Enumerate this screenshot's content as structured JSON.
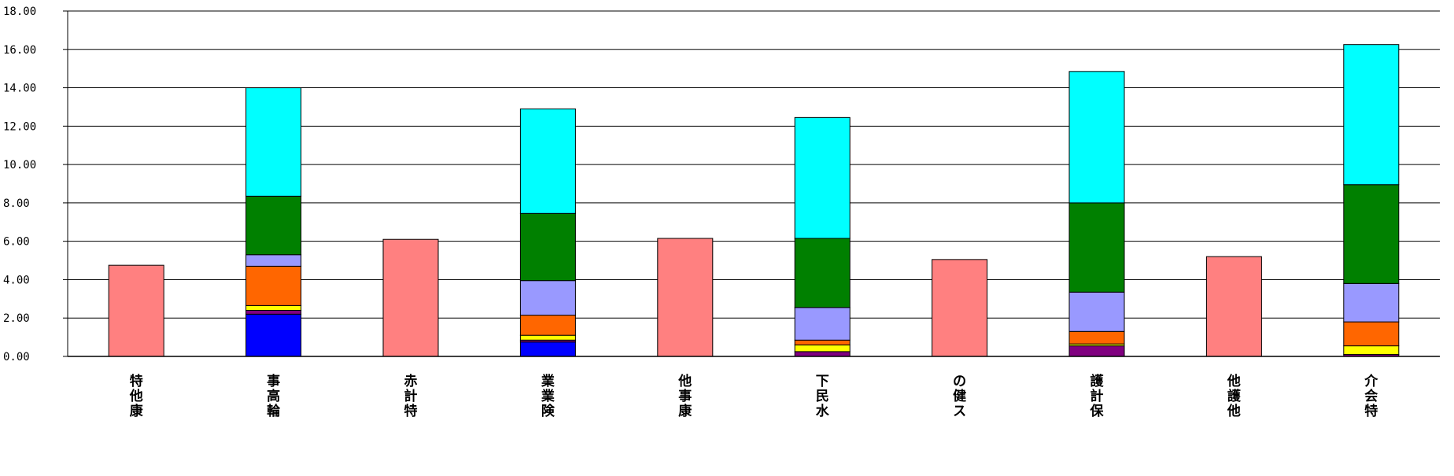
{
  "chart_data": {
    "type": "bar",
    "stacked": true,
    "categories": [
      "特他康",
      "事高輪",
      "赤計特",
      "業業険",
      "他事康",
      "下民水",
      "の健ス",
      "護計保",
      "他護他",
      "介会特"
    ],
    "ylim": [
      0,
      18
    ],
    "yticks": [
      "0.00",
      "2.00",
      "4.00",
      "6.00",
      "8.00",
      "10.00",
      "12.00",
      "14.00",
      "16.00",
      "18.00"
    ],
    "grid": true,
    "legend": "none",
    "series": [
      {
        "color": "#ff8080",
        "values": [
          4.75,
          0,
          6.1,
          0,
          6.15,
          0,
          5.05,
          0,
          5.2,
          0
        ]
      },
      {
        "color": "#0000ff",
        "values": [
          0,
          2.2,
          0,
          0.75,
          0,
          0.0,
          0,
          0.0,
          0,
          0.0
        ]
      },
      {
        "color": "#800080",
        "values": [
          0,
          0.2,
          0,
          0.1,
          0,
          0.25,
          0,
          0.55,
          0,
          0.1
        ]
      },
      {
        "color": "#ffff00",
        "values": [
          0,
          0.25,
          0,
          0.25,
          0,
          0.35,
          0,
          0.1,
          0,
          0.45
        ]
      },
      {
        "color": "#ff6600",
        "values": [
          0,
          2.05,
          0,
          1.05,
          0,
          0.25,
          0,
          0.65,
          0,
          1.25
        ]
      },
      {
        "color": "#9999ff",
        "values": [
          0,
          0.6,
          0,
          1.8,
          0,
          1.7,
          0,
          2.05,
          0,
          2.0
        ]
      },
      {
        "color": "#008000",
        "values": [
          0,
          3.05,
          0,
          3.5,
          0,
          3.6,
          0,
          4.65,
          0,
          5.15
        ]
      },
      {
        "color": "#00ffff",
        "values": [
          0,
          5.65,
          0,
          5.45,
          0,
          6.3,
          0,
          6.85,
          0,
          7.3
        ]
      }
    ]
  }
}
